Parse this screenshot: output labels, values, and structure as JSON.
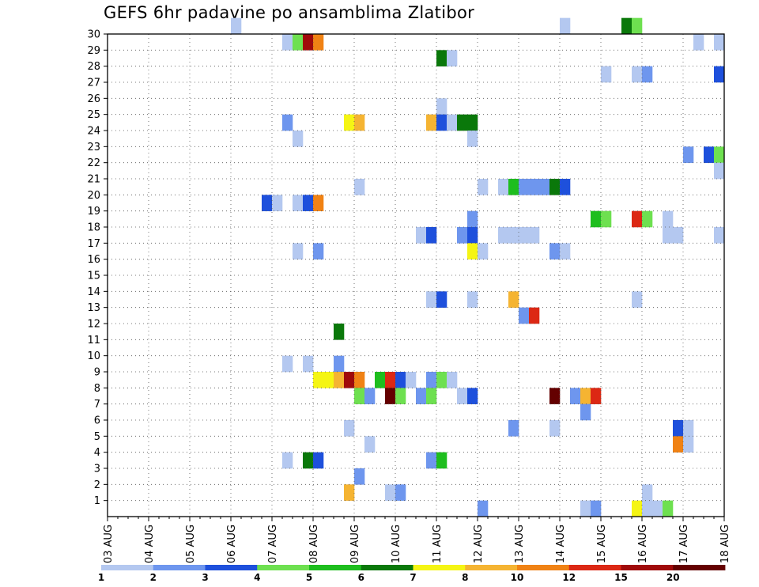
{
  "chart_data": {
    "type": "heatmap",
    "title": "GEFS 6hr padavine po ansamblima Zlatibor",
    "xlabel": "",
    "ylabel": "",
    "x_ticks": [
      "03 AUG",
      "04 AUG",
      "05 AUG",
      "06 AUG",
      "07 AUG",
      "08 AUG",
      "09 AUG",
      "10 AUG",
      "11 AUG",
      "12 AUG",
      "13 AUG",
      "14 AUG",
      "15 AUG",
      "16 AUG",
      "17 AUG",
      "18 AUG"
    ],
    "x_range": [
      "03 AUG 00Z",
      "18 AUG 00Z"
    ],
    "x_step_hours": 6,
    "y_ticks": [
      1,
      2,
      3,
      4,
      5,
      6,
      7,
      8,
      9,
      10,
      11,
      12,
      13,
      14,
      15,
      16,
      17,
      18,
      19,
      20,
      21,
      22,
      23,
      24,
      25,
      26,
      27,
      28,
      29,
      30
    ],
    "y_range": [
      0,
      30
    ],
    "grid": true,
    "legend": {
      "placement": "bottom",
      "labels": [
        "1",
        "2",
        "3",
        "4",
        "5",
        "6",
        "7",
        "8",
        "10",
        "12",
        "15",
        "20"
      ],
      "colors": [
        "#b4c8f0",
        "#6e96ee",
        "#1e50dc",
        "#6ee050",
        "#1ebe1e",
        "#0a780a",
        "#f5f514",
        "#f5b432",
        "#f08214",
        "#dc2814",
        "#a00a0a",
        "#640000"
      ]
    },
    "cells": [
      {
        "member": 30,
        "step": 12,
        "level": 1
      },
      {
        "member": 30,
        "step": 44,
        "level": 1
      },
      {
        "member": 30,
        "step": 50,
        "level": 6
      },
      {
        "member": 30,
        "step": 51,
        "level": 4
      },
      {
        "member": 29,
        "step": 17,
        "level": 1
      },
      {
        "member": 29,
        "step": 18,
        "level": 4
      },
      {
        "member": 29,
        "step": 19,
        "level": 11
      },
      {
        "member": 29,
        "step": 20,
        "level": 9
      },
      {
        "member": 29,
        "step": 57,
        "level": 1
      },
      {
        "member": 29,
        "step": 59,
        "level": 1
      },
      {
        "member": 28,
        "step": 32,
        "level": 6
      },
      {
        "member": 28,
        "step": 33,
        "level": 1
      },
      {
        "member": 27,
        "step": 48,
        "level": 1
      },
      {
        "member": 27,
        "step": 51,
        "level": 1
      },
      {
        "member": 27,
        "step": 52,
        "level": 2
      },
      {
        "member": 27,
        "step": 59,
        "level": 3
      },
      {
        "member": 25,
        "step": 32,
        "level": 1
      },
      {
        "member": 24,
        "step": 17,
        "level": 2
      },
      {
        "member": 24,
        "step": 23,
        "level": 7
      },
      {
        "member": 24,
        "step": 24,
        "level": 8
      },
      {
        "member": 24,
        "step": 31,
        "level": 8
      },
      {
        "member": 24,
        "step": 32,
        "level": 3
      },
      {
        "member": 24,
        "step": 33,
        "level": 1
      },
      {
        "member": 24,
        "step": 34,
        "level": 6
      },
      {
        "member": 24,
        "step": 35,
        "level": 6
      },
      {
        "member": 23,
        "step": 18,
        "level": 1
      },
      {
        "member": 23,
        "step": 35,
        "level": 1
      },
      {
        "member": 22,
        "step": 56,
        "level": 2
      },
      {
        "member": 22,
        "step": 58,
        "level": 3
      },
      {
        "member": 22,
        "step": 59,
        "level": 4
      },
      {
        "member": 21,
        "step": 59,
        "level": 1
      },
      {
        "member": 20,
        "step": 24,
        "level": 1
      },
      {
        "member": 20,
        "step": 36,
        "level": 1
      },
      {
        "member": 20,
        "step": 38,
        "level": 1
      },
      {
        "member": 20,
        "step": 39,
        "level": 5
      },
      {
        "member": 20,
        "step": 40,
        "level": 2
      },
      {
        "member": 20,
        "step": 41,
        "level": 2
      },
      {
        "member": 20,
        "step": 42,
        "level": 2
      },
      {
        "member": 20,
        "step": 43,
        "level": 6
      },
      {
        "member": 20,
        "step": 44,
        "level": 3
      },
      {
        "member": 19,
        "step": 15,
        "level": 3
      },
      {
        "member": 19,
        "step": 16,
        "level": 1
      },
      {
        "member": 19,
        "step": 18,
        "level": 1
      },
      {
        "member": 19,
        "step": 19,
        "level": 3
      },
      {
        "member": 19,
        "step": 20,
        "level": 9
      },
      {
        "member": 18,
        "step": 35,
        "level": 2
      },
      {
        "member": 18,
        "step": 47,
        "level": 5
      },
      {
        "member": 18,
        "step": 48,
        "level": 4
      },
      {
        "member": 18,
        "step": 51,
        "level": 10
      },
      {
        "member": 18,
        "step": 52,
        "level": 4
      },
      {
        "member": 18,
        "step": 54,
        "level": 1
      },
      {
        "member": 17,
        "step": 30,
        "level": 1
      },
      {
        "member": 17,
        "step": 31,
        "level": 3
      },
      {
        "member": 17,
        "step": 34,
        "level": 2
      },
      {
        "member": 17,
        "step": 35,
        "level": 3
      },
      {
        "member": 17,
        "step": 38,
        "level": 1
      },
      {
        "member": 17,
        "step": 39,
        "level": 1
      },
      {
        "member": 17,
        "step": 40,
        "level": 1
      },
      {
        "member": 17,
        "step": 41,
        "level": 1
      },
      {
        "member": 17,
        "step": 54,
        "level": 1
      },
      {
        "member": 17,
        "step": 55,
        "level": 1
      },
      {
        "member": 17,
        "step": 59,
        "level": 1
      },
      {
        "member": 16,
        "step": 18,
        "level": 1
      },
      {
        "member": 16,
        "step": 20,
        "level": 2
      },
      {
        "member": 16,
        "step": 35,
        "level": 7
      },
      {
        "member": 16,
        "step": 36,
        "level": 1
      },
      {
        "member": 16,
        "step": 43,
        "level": 2
      },
      {
        "member": 16,
        "step": 44,
        "level": 1
      },
      {
        "member": 13,
        "step": 31,
        "level": 1
      },
      {
        "member": 13,
        "step": 32,
        "level": 3
      },
      {
        "member": 13,
        "step": 35,
        "level": 1
      },
      {
        "member": 13,
        "step": 39,
        "level": 8
      },
      {
        "member": 13,
        "step": 51,
        "level": 1
      },
      {
        "member": 12,
        "step": 40,
        "level": 2
      },
      {
        "member": 12,
        "step": 41,
        "level": 10
      },
      {
        "member": 11,
        "step": 22,
        "level": 6
      },
      {
        "member": 9,
        "step": 17,
        "level": 1
      },
      {
        "member": 9,
        "step": 19,
        "level": 1
      },
      {
        "member": 9,
        "step": 22,
        "level": 2
      },
      {
        "member": 8,
        "step": 20,
        "level": 7
      },
      {
        "member": 8,
        "step": 21,
        "level": 7
      },
      {
        "member": 8,
        "step": 22,
        "level": 8
      },
      {
        "member": 8,
        "step": 23,
        "level": 11
      },
      {
        "member": 8,
        "step": 24,
        "level": 9
      },
      {
        "member": 8,
        "step": 26,
        "level": 5
      },
      {
        "member": 8,
        "step": 27,
        "level": 10
      },
      {
        "member": 8,
        "step": 28,
        "level": 3
      },
      {
        "member": 8,
        "step": 29,
        "level": 1
      },
      {
        "member": 8,
        "step": 31,
        "level": 2
      },
      {
        "member": 8,
        "step": 32,
        "level": 4
      },
      {
        "member": 8,
        "step": 33,
        "level": 1
      },
      {
        "member": 7,
        "step": 24,
        "level": 4
      },
      {
        "member": 7,
        "step": 25,
        "level": 2
      },
      {
        "member": 7,
        "step": 27,
        "level": 12
      },
      {
        "member": 7,
        "step": 28,
        "level": 4
      },
      {
        "member": 7,
        "step": 30,
        "level": 2
      },
      {
        "member": 7,
        "step": 31,
        "level": 4
      },
      {
        "member": 7,
        "step": 34,
        "level": 1
      },
      {
        "member": 7,
        "step": 35,
        "level": 3
      },
      {
        "member": 7,
        "step": 43,
        "level": 12
      },
      {
        "member": 7,
        "step": 45,
        "level": 2
      },
      {
        "member": 7,
        "step": 46,
        "level": 8
      },
      {
        "member": 7,
        "step": 47,
        "level": 10
      },
      {
        "member": 6,
        "step": 46,
        "level": 2
      },
      {
        "member": 5,
        "step": 23,
        "level": 1
      },
      {
        "member": 5,
        "step": 39,
        "level": 2
      },
      {
        "member": 5,
        "step": 43,
        "level": 1
      },
      {
        "member": 5,
        "step": 55,
        "level": 3
      },
      {
        "member": 5,
        "step": 56,
        "level": 1
      },
      {
        "member": 4,
        "step": 25,
        "level": 1
      },
      {
        "member": 4,
        "step": 55,
        "level": 9
      },
      {
        "member": 4,
        "step": 56,
        "level": 1
      },
      {
        "member": 3,
        "step": 17,
        "level": 1
      },
      {
        "member": 3,
        "step": 19,
        "level": 6
      },
      {
        "member": 3,
        "step": 20,
        "level": 3
      },
      {
        "member": 3,
        "step": 31,
        "level": 2
      },
      {
        "member": 3,
        "step": 32,
        "level": 5
      },
      {
        "member": 2,
        "step": 24,
        "level": 2
      },
      {
        "member": 1,
        "step": 23,
        "level": 8
      },
      {
        "member": 1,
        "step": 27,
        "level": 1
      },
      {
        "member": 1,
        "step": 28,
        "level": 2
      },
      {
        "member": 1,
        "step": 52,
        "level": 1
      },
      {
        "member": 0,
        "step": 36,
        "level": 2
      },
      {
        "member": 0,
        "step": 46,
        "level": 1
      },
      {
        "member": 0,
        "step": 47,
        "level": 2
      },
      {
        "member": 0,
        "step": 51,
        "level": 7
      },
      {
        "member": 0,
        "step": 52,
        "level": 1
      },
      {
        "member": 0,
        "step": 53,
        "level": 1
      },
      {
        "member": 0,
        "step": 54,
        "level": 4
      }
    ]
  }
}
